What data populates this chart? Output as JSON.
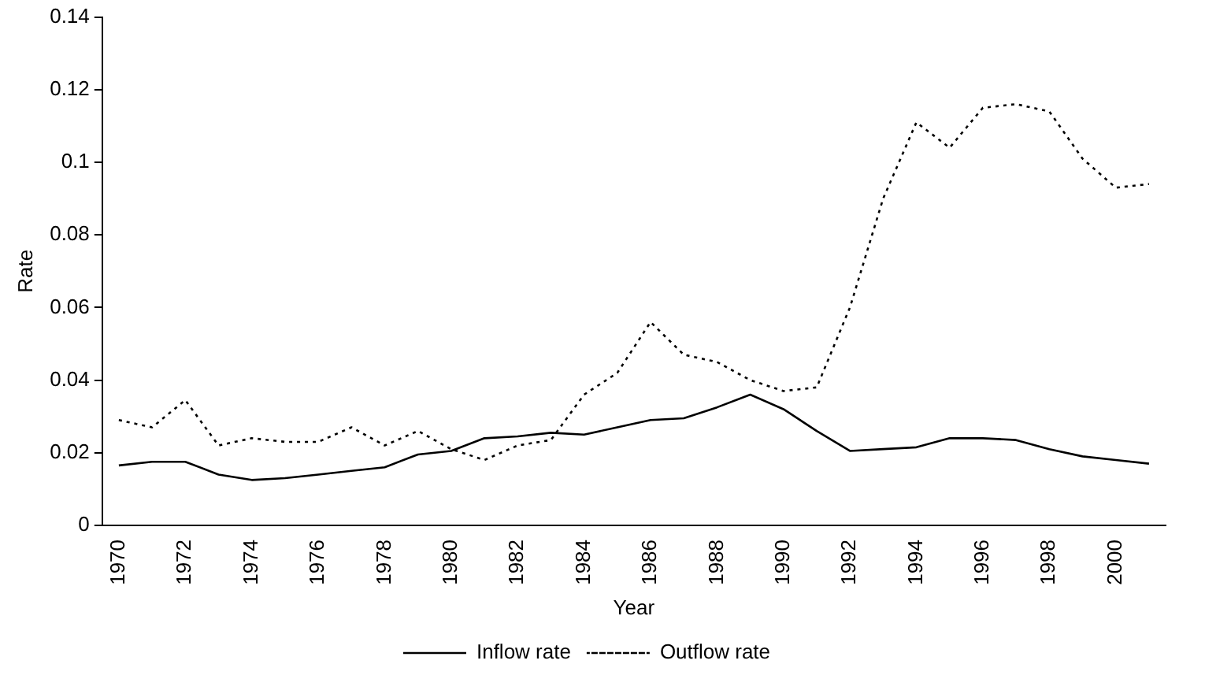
{
  "chart_data": {
    "type": "line",
    "xlabel": "Year",
    "ylabel": "Rate",
    "categories": [
      "1970",
      null,
      "1972",
      null,
      "1974",
      null,
      "1976",
      null,
      "1978",
      null,
      "1980",
      null,
      "1982",
      null,
      "1984",
      null,
      "1986",
      null,
      "1988",
      null,
      "1990",
      null,
      "1992",
      null,
      "1994",
      null,
      "1996",
      null,
      "1998",
      null,
      "2000",
      null
    ],
    "series": [
      {
        "name": "Inflow rate",
        "color": "#000000",
        "line_style": "solid",
        "values": [
          0.0165,
          0.0175,
          0.0175,
          0.014,
          0.0125,
          0.013,
          0.014,
          0.015,
          0.016,
          0.0195,
          0.0205,
          0.024,
          0.0245,
          0.0255,
          0.025,
          0.027,
          0.029,
          0.0295,
          0.0325,
          0.036,
          0.032,
          0.026,
          0.0205,
          0.021,
          0.0215,
          0.024,
          0.024,
          0.0235,
          0.021,
          0.019,
          0.018,
          0.017
        ]
      },
      {
        "name": "Outflow rate",
        "color": "#000000",
        "line_style": "dotted",
        "values": [
          0.029,
          0.027,
          0.0345,
          0.022,
          0.024,
          0.023,
          0.023,
          0.027,
          0.022,
          0.026,
          0.021,
          0.018,
          0.022,
          0.0235,
          0.036,
          0.042,
          0.056,
          0.047,
          0.045,
          0.04,
          0.037,
          0.038,
          0.06,
          0.09,
          0.111,
          0.104,
          0.115,
          0.116,
          0.114,
          0.101,
          0.093,
          0.094
        ]
      }
    ],
    "ylim": [
      0,
      0.14
    ],
    "yticks": [
      0,
      0.02,
      0.04,
      0.06,
      0.08,
      0.1,
      0.12,
      0.14
    ],
    "grid": false,
    "legend": "bottom",
    "marker": "none"
  }
}
